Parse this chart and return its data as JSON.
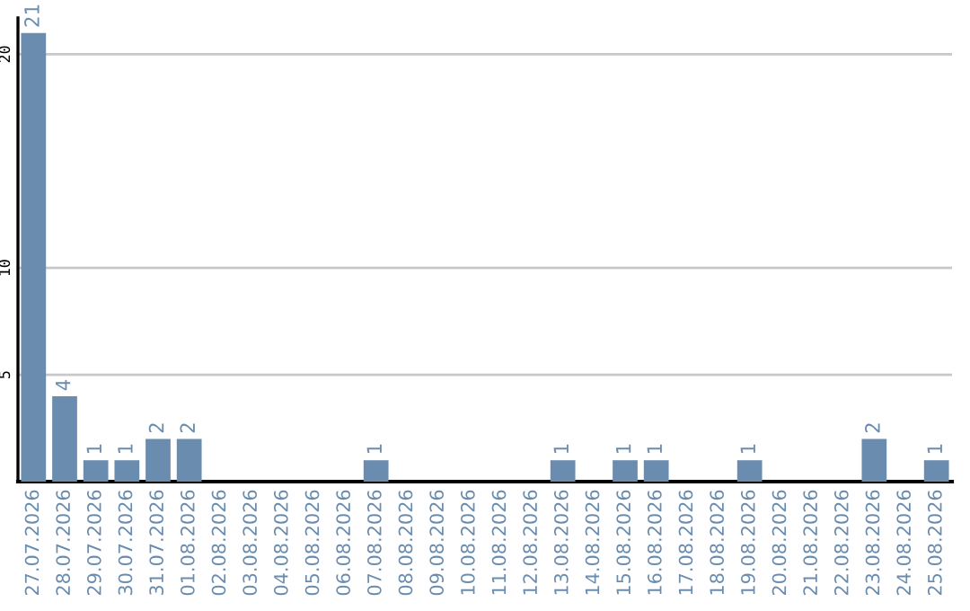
{
  "chart_data": {
    "type": "bar",
    "categories": [
      "27.07.2026",
      "28.07.2026",
      "29.07.2026",
      "30.07.2026",
      "31.07.2026",
      "01.08.2026",
      "02.08.2026",
      "03.08.2026",
      "04.08.2026",
      "05.08.2026",
      "06.08.2026",
      "07.08.2026",
      "08.08.2026",
      "09.08.2026",
      "10.08.2026",
      "11.08.2026",
      "12.08.2026",
      "13.08.2026",
      "14.08.2026",
      "15.08.2026",
      "16.08.2026",
      "17.08.2026",
      "18.08.2026",
      "19.08.2026",
      "20.08.2026",
      "21.08.2026",
      "22.08.2026",
      "23.08.2026",
      "24.08.2026",
      "25.08.2026"
    ],
    "values": [
      21,
      4,
      1,
      1,
      2,
      2,
      0,
      0,
      0,
      0,
      0,
      1,
      0,
      0,
      0,
      0,
      0,
      1,
      0,
      1,
      1,
      0,
      0,
      1,
      0,
      0,
      0,
      2,
      0,
      1
    ],
    "value_labels": [
      "21",
      "4",
      "1",
      "1",
      "2",
      "2",
      null,
      null,
      null,
      null,
      null,
      "1",
      null,
      null,
      null,
      null,
      null,
      "1",
      null,
      "1",
      "1",
      null,
      null,
      "1",
      null,
      null,
      null,
      "2",
      null,
      "1"
    ],
    "color": "#6a8caf",
    "ylim": [
      0,
      21.7
    ],
    "yticks": [
      5,
      10,
      20
    ],
    "grid": "y"
  }
}
